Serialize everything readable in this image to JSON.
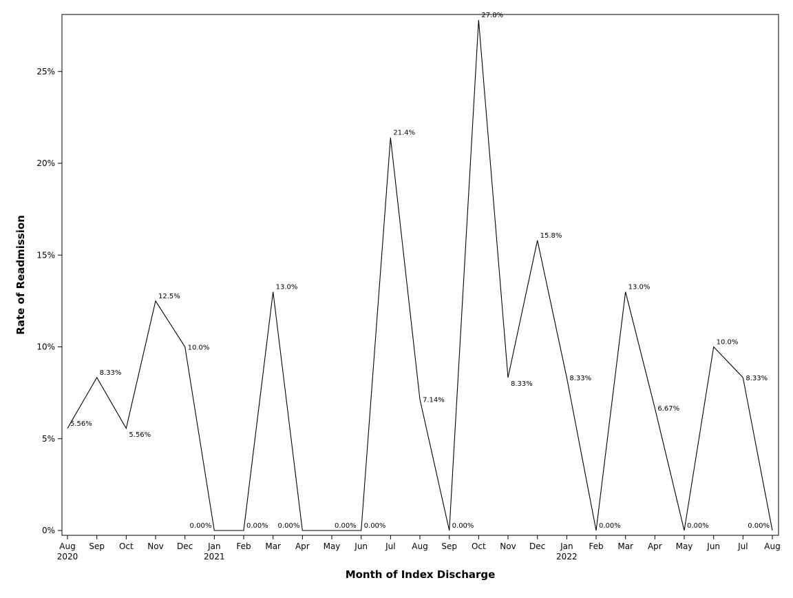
{
  "chart_data": {
    "type": "line",
    "xlabel": "Month of Index Discharge",
    "ylabel": "Rate of Readmission",
    "ylim": [
      0,
      28
    ],
    "y_ticks": [
      0,
      5,
      10,
      15,
      20,
      25
    ],
    "y_tick_labels": [
      "0%",
      "5%",
      "10%",
      "15%",
      "20%",
      "25%"
    ],
    "grid": false,
    "legend": "none",
    "line_color": "#000000",
    "categories": [
      "Aug",
      "Sep",
      "Oct",
      "Nov",
      "Dec",
      "Jan",
      "Feb",
      "Mar",
      "Apr",
      "May",
      "Jun",
      "Jul",
      "Aug",
      "Sep",
      "Oct",
      "Nov",
      "Dec",
      "Jan",
      "Feb",
      "Mar",
      "Apr",
      "May",
      "Jun",
      "Jul",
      "Aug"
    ],
    "year_labels": [
      {
        "index": 0,
        "label": "2020"
      },
      {
        "index": 5,
        "label": "2021"
      },
      {
        "index": 17,
        "label": "2022"
      }
    ],
    "dates": [
      "2020-08",
      "2020-09",
      "2020-10",
      "2020-11",
      "2020-12",
      "2021-01",
      "2021-02",
      "2021-03",
      "2021-04",
      "2021-05",
      "2021-06",
      "2021-07",
      "2021-08",
      "2021-09",
      "2021-10",
      "2021-11",
      "2021-12",
      "2022-01",
      "2022-02",
      "2022-03",
      "2022-04",
      "2022-05",
      "2022-06",
      "2022-07",
      "2022-08"
    ],
    "series": [
      {
        "values": [
          5.56,
          8.33,
          5.56,
          12.5,
          10.0,
          0,
          0,
          13.0,
          0,
          0,
          0,
          21.4,
          7.14,
          0,
          27.8,
          8.33,
          15.8,
          8.33,
          0,
          13.0,
          6.67,
          0,
          10.0,
          8.33,
          0
        ],
        "point_labels": [
          "5.56%",
          "8.33%",
          "5.56%",
          "12.5%",
          "10.0%",
          "0.00%",
          "0.00%",
          "13.0%",
          "0.00%",
          "0.00%",
          "0.00%",
          "21.4%",
          "7.14%",
          "0.00%",
          "27.8%",
          "8.33%",
          "15.8%",
          "8.33%",
          "0.00%",
          "13.0%",
          "6.67%",
          "0.00%",
          "10.0%",
          "8.33%",
          "0.00%"
        ]
      }
    ]
  }
}
